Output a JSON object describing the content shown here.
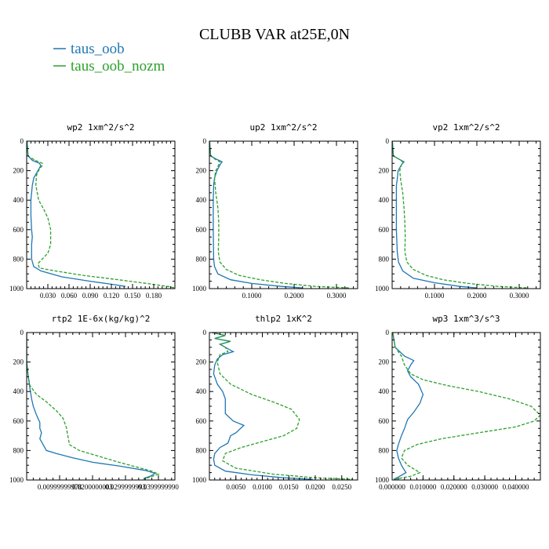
{
  "figure": {
    "title": "CLUBB VAR at25E,0N",
    "legend": [
      {
        "label": "taus_oob",
        "color": "#1f77b4",
        "dash": "solid"
      },
      {
        "label": "taus_oob_nozm",
        "color": "#2ca02c",
        "dash": "dashed"
      }
    ]
  },
  "chart_data": [
    {
      "type": "line",
      "title": "wp2  1xm^2/s^2",
      "xlim": [
        0,
        0.21
      ],
      "ylim": [
        1000,
        0
      ],
      "xticks": [
        0.03,
        0.06,
        0.09,
        0.12,
        0.15,
        0.18
      ],
      "xtick_labels": [
        "0.030",
        "0.060",
        "0.090",
        "0.120",
        "0.150",
        "0.180"
      ],
      "yticks": [
        0,
        200,
        400,
        600,
        800,
        1000
      ],
      "ytick_labels": [
        "0",
        "200",
        "400",
        "600",
        "800",
        "1000"
      ],
      "series": [
        {
          "name": "taus_oob",
          "color": "#1f77b4",
          "dash": "solid",
          "x": [
            0.0005,
            0.002,
            0.008,
            0.018,
            0.02,
            0.016,
            0.01,
            0.008,
            0.007,
            0.006,
            0.006,
            0.007,
            0.008,
            0.007,
            0.007,
            0.01,
            0.02,
            0.05,
            0.09,
            0.12,
            0.14
          ],
          "y": [
            0,
            100,
            130,
            150,
            165,
            200,
            250,
            300,
            350,
            400,
            500,
            600,
            650,
            700,
            800,
            850,
            880,
            920,
            950,
            970,
            985
          ]
        },
        {
          "name": "taus_oob_nozm",
          "color": "#2ca02c",
          "dash": "dashed",
          "x": [
            0.0005,
            0.002,
            0.012,
            0.022,
            0.022,
            0.018,
            0.014,
            0.013,
            0.017,
            0.024,
            0.03,
            0.034,
            0.034,
            0.03,
            0.022,
            0.016,
            0.018,
            0.04,
            0.08,
            0.13,
            0.17,
            0.2,
            0.21
          ],
          "y": [
            0,
            100,
            130,
            150,
            165,
            190,
            230,
            300,
            400,
            460,
            520,
            600,
            700,
            760,
            800,
            830,
            860,
            880,
            910,
            940,
            965,
            985,
            995
          ]
        }
      ]
    },
    {
      "type": "line",
      "title": "up2  1xm^2/s^2",
      "xlim": [
        0,
        0.35
      ],
      "ylim": [
        1000,
        0
      ],
      "xticks": [
        0.1,
        0.2,
        0.3
      ],
      "xtick_labels": [
        "0.1000",
        "0.2000",
        "0.3000"
      ],
      "yticks": [
        0,
        200,
        400,
        600,
        800,
        1000
      ],
      "ytick_labels": [
        "0",
        "200",
        "400",
        "600",
        "800",
        "1000"
      ],
      "series": [
        {
          "name": "taus_oob",
          "color": "#1f77b4",
          "dash": "solid",
          "x": [
            0.0005,
            0.003,
            0.015,
            0.03,
            0.025,
            0.018,
            0.012,
            0.01,
            0.009,
            0.009,
            0.01,
            0.012,
            0.02,
            0.05,
            0.1,
            0.17,
            0.22
          ],
          "y": [
            0,
            100,
            120,
            140,
            160,
            200,
            250,
            300,
            400,
            600,
            800,
            850,
            900,
            940,
            965,
            985,
            995
          ]
        },
        {
          "name": "taus_oob_nozm",
          "color": "#2ca02c",
          "dash": "dashed",
          "x": [
            0.0005,
            0.003,
            0.012,
            0.025,
            0.022,
            0.015,
            0.012,
            0.015,
            0.02,
            0.022,
            0.022,
            0.021,
            0.025,
            0.04,
            0.07,
            0.12,
            0.18,
            0.25,
            0.33
          ],
          "y": [
            0,
            100,
            120,
            140,
            160,
            200,
            250,
            350,
            450,
            550,
            650,
            750,
            820,
            870,
            910,
            940,
            965,
            985,
            995
          ]
        }
      ]
    },
    {
      "type": "line",
      "title": "vp2  1xm^2/s^2",
      "xlim": [
        0,
        0.35
      ],
      "ylim": [
        1000,
        0
      ],
      "xticks": [
        0.1,
        0.2,
        0.3
      ],
      "xtick_labels": [
        "0.1000",
        "0.2000",
        "0.3000"
      ],
      "yticks": [
        0,
        200,
        400,
        600,
        800,
        1000
      ],
      "ytick_labels": [
        "0",
        "200",
        "400",
        "600",
        "800",
        "1000"
      ],
      "series": [
        {
          "name": "taus_oob",
          "color": "#1f77b4",
          "dash": "solid",
          "x": [
            0.0005,
            0.003,
            0.015,
            0.028,
            0.022,
            0.014,
            0.012,
            0.01,
            0.01,
            0.01,
            0.012,
            0.015,
            0.025,
            0.05,
            0.1,
            0.16,
            0.2
          ],
          "y": [
            0,
            100,
            120,
            140,
            160,
            200,
            260,
            300,
            400,
            600,
            750,
            820,
            880,
            930,
            960,
            985,
            995
          ]
        },
        {
          "name": "taus_oob_nozm",
          "color": "#2ca02c",
          "dash": "dashed",
          "x": [
            0.0005,
            0.003,
            0.015,
            0.025,
            0.022,
            0.018,
            0.02,
            0.025,
            0.028,
            0.03,
            0.031,
            0.03,
            0.035,
            0.05,
            0.08,
            0.12,
            0.18,
            0.25,
            0.32
          ],
          "y": [
            0,
            100,
            120,
            140,
            160,
            200,
            260,
            350,
            450,
            550,
            650,
            750,
            820,
            870,
            910,
            940,
            965,
            985,
            995
          ]
        }
      ]
    },
    {
      "type": "line",
      "title": "rtp2  1E-6x(kg/kg)^2",
      "xlim": [
        0,
        0.045
      ],
      "ylim": [
        1000,
        0
      ],
      "xticks": [
        0.01,
        0.02,
        0.03,
        0.04
      ],
      "xtick_labels": [
        "0.00999999978",
        "0.0200000003",
        "0.0299999993",
        "0.0399999990"
      ],
      "yticks": [
        0,
        200,
        400,
        600,
        800,
        1000
      ],
      "ytick_labels": [
        "0",
        "200",
        "400",
        "600",
        "800",
        "1000"
      ],
      "series": [
        {
          "name": "taus_oob",
          "color": "#1f77b4",
          "dash": "solid",
          "x": [
            0.0,
            0.0,
            0.0005,
            0.001,
            0.0015,
            0.002,
            0.003,
            0.004,
            0.004,
            0.0045,
            0.004,
            0.005,
            0.006,
            0.009,
            0.014,
            0.02,
            0.028,
            0.036,
            0.039,
            0.0375,
            0.0355
          ],
          "y": [
            0,
            200,
            300,
            380,
            450,
            500,
            560,
            610,
            650,
            680,
            720,
            760,
            800,
            820,
            850,
            880,
            905,
            935,
            955,
            975,
            990
          ]
        },
        {
          "name": "taus_oob_nozm",
          "color": "#2ca02c",
          "dash": "dashed",
          "x": [
            0.0,
            0.0,
            0.0005,
            0.001,
            0.003,
            0.006,
            0.009,
            0.011,
            0.012,
            0.0125,
            0.013,
            0.016,
            0.022,
            0.028,
            0.033,
            0.038,
            0.04,
            0.0375,
            0.0355
          ],
          "y": [
            0,
            200,
            300,
            360,
            420,
            470,
            530,
            580,
            640,
            700,
            760,
            800,
            840,
            880,
            910,
            940,
            960,
            980,
            995
          ]
        }
      ]
    },
    {
      "type": "line",
      "title": "thlp2  1xK^2",
      "xlim": [
        0,
        0.028
      ],
      "ylim": [
        1000,
        0
      ],
      "xticks": [
        0.005,
        0.01,
        0.015,
        0.02,
        0.025
      ],
      "xtick_labels": [
        "0.0050",
        "0.0100",
        "0.0150",
        "0.0200",
        "0.0250"
      ],
      "yticks": [
        0,
        200,
        400,
        600,
        800,
        1000
      ],
      "ytick_labels": [
        "0",
        "200",
        "400",
        "600",
        "800",
        "1000"
      ],
      "series": [
        {
          "name": "taus_oob",
          "color": "#1f77b4",
          "dash": "solid",
          "x": [
            0.0005,
            0.003,
            0.001,
            0.004,
            0.002,
            0.003,
            0.0045,
            0.0025,
            0.0015,
            0.001,
            0.0008,
            0.0015,
            0.0025,
            0.003,
            0.003,
            0.0045,
            0.0065,
            0.005,
            0.004,
            0.0035,
            0.002,
            0.001,
            0.0008,
            0.001,
            0.003,
            0.008,
            0.014,
            0.0195
          ],
          "y": [
            0,
            20,
            40,
            60,
            80,
            100,
            130,
            150,
            180,
            220,
            280,
            350,
            400,
            450,
            550,
            600,
            630,
            680,
            700,
            750,
            780,
            820,
            860,
            900,
            940,
            965,
            985,
            995
          ]
        },
        {
          "name": "taus_oob_nozm",
          "color": "#2ca02c",
          "dash": "dashed",
          "x": [
            0.0005,
            0.003,
            0.001,
            0.004,
            0.002,
            0.003,
            0.0035,
            0.002,
            0.0015,
            0.002,
            0.004,
            0.008,
            0.012,
            0.0155,
            0.017,
            0.0165,
            0.014,
            0.01,
            0.006,
            0.003,
            0.0025,
            0.005,
            0.012,
            0.02,
            0.027
          ],
          "y": [
            0,
            20,
            40,
            60,
            80,
            100,
            130,
            150,
            200,
            280,
            350,
            420,
            470,
            520,
            590,
            650,
            700,
            740,
            780,
            820,
            870,
            920,
            960,
            985,
            995
          ]
        }
      ]
    },
    {
      "type": "line",
      "title": "wp3  1xm^3/s^3",
      "xlim": [
        0,
        0.048
      ],
      "ylim": [
        1000,
        0
      ],
      "xticks": [
        0.0,
        0.01,
        0.02,
        0.03,
        0.04
      ],
      "xtick_labels": [
        "0.000000",
        "0.010000",
        "0.020000",
        "0.030000",
        "0.040000"
      ],
      "yticks": [
        0,
        200,
        400,
        600,
        800,
        1000
      ],
      "ytick_labels": [
        "0",
        "200",
        "400",
        "600",
        "800",
        "1000"
      ],
      "series": [
        {
          "name": "taus_oob",
          "color": "#1f77b4",
          "dash": "solid",
          "x": [
            0.0002,
            0.001,
            0.004,
            0.007,
            0.006,
            0.005,
            0.006,
            0.0085,
            0.01,
            0.009,
            0.007,
            0.005,
            0.004,
            0.003,
            0.002,
            0.0015,
            0.002,
            0.003,
            0.0045,
            0.002,
            0.0005
          ],
          "y": [
            0,
            100,
            160,
            190,
            220,
            260,
            300,
            350,
            420,
            480,
            540,
            590,
            650,
            700,
            760,
            800,
            850,
            900,
            950,
            980,
            995
          ]
        },
        {
          "name": "taus_oob_nozm",
          "color": "#2ca02c",
          "dash": "dashed",
          "x": [
            0.0002,
            0.001,
            0.003,
            0.004,
            0.006,
            0.01,
            0.018,
            0.028,
            0.038,
            0.045,
            0.048,
            0.046,
            0.04,
            0.028,
            0.016,
            0.008,
            0.004,
            0.003,
            0.005,
            0.009,
            0.006,
            0.002,
            0.0005
          ],
          "y": [
            0,
            100,
            160,
            220,
            280,
            320,
            360,
            400,
            450,
            500,
            560,
            600,
            640,
            680,
            720,
            760,
            800,
            850,
            900,
            950,
            975,
            990,
            998
          ]
        }
      ]
    }
  ]
}
